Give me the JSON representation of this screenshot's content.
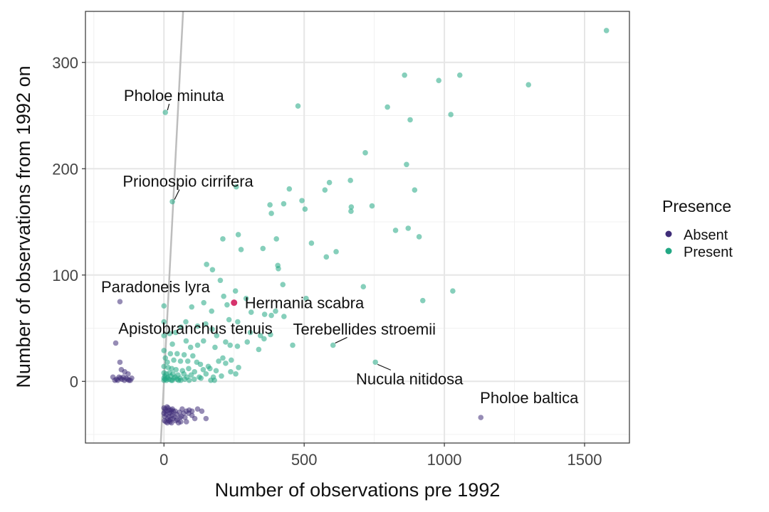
{
  "chart_data": {
    "type": "scatter",
    "xlabel": "Number of observations pre 1992",
    "ylabel": "Number of observations from 1992 on",
    "xlim": [
      -280,
      1660
    ],
    "ylim": [
      -58,
      348
    ],
    "x_ticks": [
      0,
      500,
      1000,
      1500
    ],
    "y_ticks": [
      0,
      100,
      200,
      300
    ],
    "grid": true,
    "legend": {
      "title": "Presence",
      "position": "right",
      "entries": [
        "Absent",
        "Present"
      ]
    },
    "colors": {
      "Absent": "#3f2d78",
      "Present": "#22a884",
      "highlight": "#d6336c",
      "reference_line": "#bdbdbd"
    },
    "reference_line": {
      "slope": 5.1,
      "intercept": 0
    },
    "series": [
      {
        "name": "Present",
        "color": "#22a884",
        "points": [
          [
            1578,
            330
          ],
          [
            858,
            288
          ],
          [
            1055,
            288
          ],
          [
            980,
            283
          ],
          [
            1300,
            279
          ],
          [
            478,
            259
          ],
          [
            797,
            258
          ],
          [
            1023,
            251
          ],
          [
            878,
            246
          ],
          [
            718,
            215
          ],
          [
            865,
            204
          ],
          [
            258,
            183
          ],
          [
            447,
            181
          ],
          [
            574,
            180
          ],
          [
            894,
            180
          ],
          [
            492,
            170
          ],
          [
            378,
            166
          ],
          [
            427,
            167
          ],
          [
            590,
            187
          ],
          [
            665,
            189
          ],
          [
            742,
            165
          ],
          [
            503,
            162
          ],
          [
            383,
            158
          ],
          [
            668,
            164
          ],
          [
            667,
            160
          ],
          [
            826,
            142
          ],
          [
            871,
            144
          ],
          [
            910,
            136
          ],
          [
            265,
            138
          ],
          [
            210,
            134
          ],
          [
            401,
            134
          ],
          [
            526,
            130
          ],
          [
            275,
            124
          ],
          [
            353,
            125
          ],
          [
            614,
            122
          ],
          [
            579,
            117
          ],
          [
            152,
            110
          ],
          [
            406,
            109
          ],
          [
            408,
            106
          ],
          [
            173,
            105
          ],
          [
            201,
            95
          ],
          [
            424,
            91
          ],
          [
            711,
            89
          ],
          [
            255,
            85
          ],
          [
            1030,
            85
          ],
          [
            213,
            80
          ],
          [
            293,
            78
          ],
          [
            507,
            78
          ],
          [
            923,
            76
          ],
          [
            142,
            74
          ],
          [
            225,
            72
          ],
          [
            0,
            71
          ],
          [
            398,
            66
          ],
          [
            99,
            70
          ],
          [
            311,
            65
          ],
          [
            170,
            66
          ],
          [
            359,
            63
          ],
          [
            383,
            62
          ],
          [
            428,
            61
          ],
          [
            232,
            58
          ],
          [
            78,
            56
          ],
          [
            0,
            56
          ],
          [
            263,
            56
          ],
          [
            149,
            54
          ],
          [
            120,
            52
          ],
          [
            61,
            51
          ],
          [
            172,
            49
          ],
          [
            42,
            46
          ],
          [
            308,
            46
          ],
          [
            20,
            45
          ],
          [
            344,
            43
          ],
          [
            380,
            44
          ],
          [
            0,
            43
          ],
          [
            188,
            43
          ],
          [
            79,
            38
          ],
          [
            141,
            38
          ],
          [
            297,
            37
          ],
          [
            220,
            37
          ],
          [
            357,
            40
          ],
          [
            459,
            34
          ],
          [
            603,
            34
          ],
          [
            30,
            35
          ],
          [
            120,
            34
          ],
          [
            182,
            32
          ],
          [
            95,
            32
          ],
          [
            236,
            34
          ],
          [
            262,
            33
          ],
          [
            338,
            30
          ],
          [
            0,
            29
          ],
          [
            23,
            26
          ],
          [
            47,
            26
          ],
          [
            72,
            25
          ],
          [
            103,
            24
          ],
          [
            210,
            22
          ],
          [
            240,
            20
          ],
          [
            5,
            22
          ],
          [
            12,
            18
          ],
          [
            35,
            20
          ],
          [
            59,
            19
          ],
          [
            85,
            19
          ],
          [
            117,
            18
          ],
          [
            130,
            16
          ],
          [
            158,
            14
          ],
          [
            195,
            19
          ],
          [
            220,
            17
          ],
          [
            266,
            13
          ],
          [
            754,
            18
          ],
          [
            0,
            14
          ],
          [
            15,
            13
          ],
          [
            28,
            12
          ],
          [
            43,
            11
          ],
          [
            66,
            10
          ],
          [
            88,
            12
          ],
          [
            109,
            9
          ],
          [
            140,
            11
          ],
          [
            164,
            12
          ],
          [
            186,
            10
          ],
          [
            238,
            9
          ],
          [
            0,
            8
          ],
          [
            8,
            7
          ],
          [
            20,
            8
          ],
          [
            32,
            7
          ],
          [
            50,
            6
          ],
          [
            71,
            7
          ],
          [
            97,
            6
          ],
          [
            126,
            4
          ],
          [
            150,
            7
          ],
          [
            176,
            4
          ],
          [
            205,
            5
          ],
          [
            256,
            7
          ],
          [
            0,
            3
          ],
          [
            4,
            2
          ],
          [
            11,
            3
          ],
          [
            18,
            2
          ],
          [
            26,
            1
          ],
          [
            36,
            3
          ],
          [
            47,
            2
          ],
          [
            60,
            1
          ],
          [
            74,
            2
          ],
          [
            90,
            1
          ],
          [
            108,
            2
          ],
          [
            132,
            3
          ],
          [
            167,
            1
          ],
          [
            180,
            1
          ],
          [
            3,
            5
          ],
          [
            13,
            4
          ],
          [
            24,
            5
          ],
          [
            40,
            4
          ],
          [
            57,
            3
          ],
          [
            82,
            4
          ],
          [
            0,
            1
          ],
          [
            9,
            1
          ],
          [
            30,
            1
          ],
          [
            52,
            1
          ],
          [
            30,
            169
          ],
          [
            5,
            253
          ]
        ]
      },
      {
        "name": "Absent",
        "color": "#3f2d78",
        "points": [
          [
            -157,
            75
          ],
          [
            -172,
            36
          ],
          [
            -157,
            18
          ],
          [
            -152,
            11
          ],
          [
            -140,
            9
          ],
          [
            -128,
            7
          ],
          [
            -182,
            4
          ],
          [
            -169,
            2
          ],
          [
            -165,
            1
          ],
          [
            -150,
            2
          ],
          [
            -141,
            1
          ],
          [
            -130,
            2
          ],
          [
            -120,
            1
          ],
          [
            -160,
            4
          ],
          [
            -115,
            3
          ],
          [
            -175,
            1
          ],
          [
            -155,
            3
          ],
          [
            -135,
            3
          ],
          [
            -125,
            1
          ],
          [
            -145,
            4
          ],
          [
            1130,
            -34
          ],
          [
            0,
            -25
          ],
          [
            5,
            -26
          ],
          [
            10,
            -28
          ],
          [
            15,
            -25
          ],
          [
            20,
            -30
          ],
          [
            25,
            -27
          ],
          [
            30,
            -26
          ],
          [
            0,
            -30
          ],
          [
            3,
            -33
          ],
          [
            8,
            -31
          ],
          [
            13,
            -35
          ],
          [
            18,
            -33
          ],
          [
            23,
            -36
          ],
          [
            28,
            -32
          ],
          [
            2,
            -37
          ],
          [
            7,
            -38
          ],
          [
            12,
            -39
          ],
          [
            17,
            -37
          ],
          [
            22,
            -38
          ],
          [
            27,
            -39
          ],
          [
            32,
            -35
          ],
          [
            37,
            -33
          ],
          [
            42,
            -37
          ],
          [
            47,
            -36
          ],
          [
            52,
            -39
          ],
          [
            57,
            -34
          ],
          [
            40,
            -28
          ],
          [
            55,
            -29
          ],
          [
            65,
            -26
          ],
          [
            70,
            -30
          ],
          [
            80,
            -28
          ],
          [
            90,
            -27
          ],
          [
            100,
            -28
          ],
          [
            120,
            -26
          ],
          [
            135,
            -28
          ],
          [
            100,
            -32
          ],
          [
            110,
            -35
          ],
          [
            150,
            -35
          ],
          [
            80,
            -38
          ],
          [
            60,
            -38
          ],
          [
            4,
            -28
          ],
          [
            11,
            -24
          ],
          [
            19,
            -27
          ],
          [
            26,
            -29
          ],
          [
            33,
            -28
          ],
          [
            45,
            -31
          ],
          [
            62,
            -33
          ],
          [
            75,
            -34
          ],
          [
            88,
            -30
          ]
        ]
      },
      {
        "name": "Hermania scabra",
        "color": "#d6336c",
        "points": [
          [
            250,
            74
          ]
        ]
      }
    ],
    "annotations": [
      {
        "text": "Pholoe minuta",
        "x": 5,
        "y": 253
      },
      {
        "text": "Prionospio cirrifera",
        "x": 30,
        "y": 169
      },
      {
        "text": "Paradoneis lyra",
        "x": -157,
        "y": 75
      },
      {
        "text": "Hermania scabra",
        "x": 250,
        "y": 74
      },
      {
        "text": "Apistobranchus tenuis",
        "x": -172,
        "y": 36
      },
      {
        "text": "Terebellides stroemii",
        "x": 603,
        "y": 34
      },
      {
        "text": "Nucula nitidosa",
        "x": 754,
        "y": 18
      },
      {
        "text": "Pholoe baltica",
        "x": 1130,
        "y": -34
      }
    ]
  }
}
